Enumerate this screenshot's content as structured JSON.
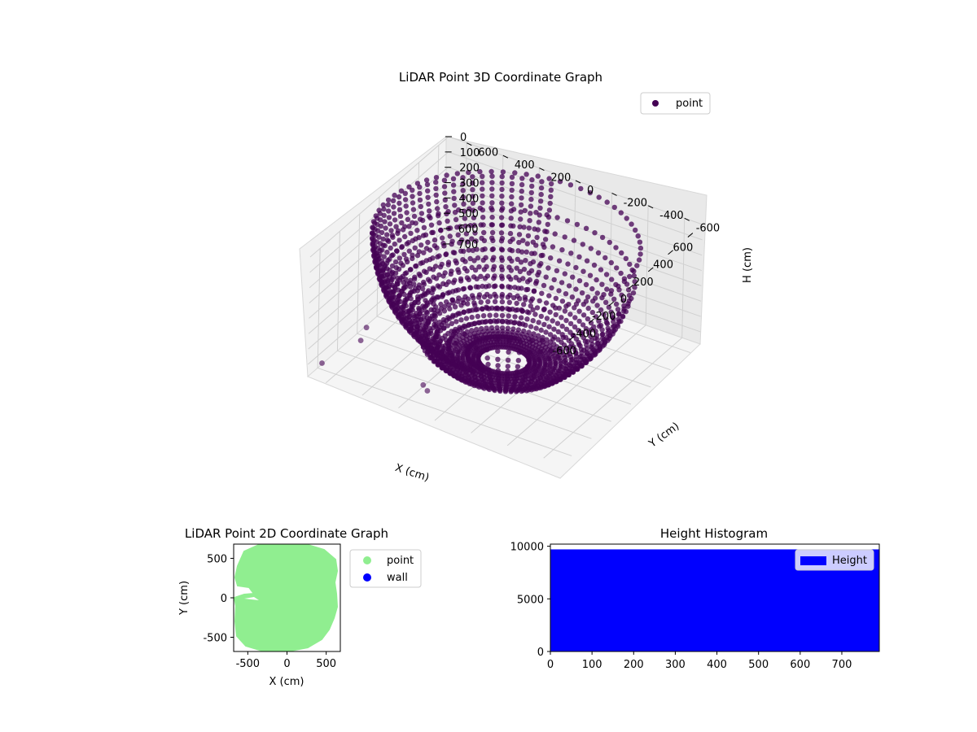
{
  "chart_data": [
    {
      "type": "scatter",
      "projection": "3d",
      "title": "LiDAR Point 3D Coordinate Graph",
      "xlabel": "X (cm)",
      "ylabel": "Y (cm)",
      "zlabel": "H (cm)",
      "xlim": [
        -700,
        700
      ],
      "ylim": [
        -700,
        700
      ],
      "zlim": [
        0,
        780
      ],
      "z_inverted": true,
      "x_ticks": [
        "-600",
        "-400",
        "-200",
        "0",
        "200",
        "400",
        "600"
      ],
      "y_ticks": [
        "-600",
        "-400",
        "-200",
        "0",
        "200",
        "400",
        "600"
      ],
      "z_ticks": [
        "0",
        "100",
        "200",
        "300",
        "400",
        "500",
        "600",
        "700"
      ],
      "legend": {
        "position": "upper-right",
        "entries": [
          "point"
        ]
      },
      "grid": true,
      "series": [
        {
          "name": "point",
          "color": "#440154",
          "shape": "hemispherical-shell",
          "radius": 650,
          "max_depth": 780
        }
      ],
      "outliers": [
        [
          -650,
          650,
          700
        ],
        [
          -350,
          600,
          700
        ],
        [
          -200,
          650,
          720
        ],
        [
          -500,
          150,
          760
        ],
        [
          -450,
          200,
          770
        ],
        [
          -250,
          -50,
          780
        ]
      ]
    },
    {
      "type": "scatter",
      "title": "LiDAR Point 2D Coordinate Graph",
      "xlabel": "X (cm)",
      "ylabel": "Y (cm)",
      "xlim": [
        -680,
        680
      ],
      "ylim": [
        -680,
        680
      ],
      "x_ticks": [
        "-500",
        "0",
        "500"
      ],
      "y_ticks": [
        "-500",
        "0",
        "500"
      ],
      "legend": {
        "position": "outside-right",
        "entries": [
          "point",
          "wall"
        ]
      },
      "series": [
        {
          "name": "point",
          "color": "#90ee90"
        },
        {
          "name": "wall",
          "color": "#0000ff"
        }
      ]
    },
    {
      "type": "bar",
      "title": "Height Histogram",
      "xlim": [
        0,
        790
      ],
      "ylim": [
        0,
        10200
      ],
      "x_ticks": [
        "0",
        "100",
        "200",
        "300",
        "400",
        "500",
        "600",
        "700"
      ],
      "y_ticks": [
        "0",
        "5000",
        "10000"
      ],
      "legend": {
        "position": "upper-right",
        "entries": [
          "Height"
        ]
      },
      "series": [
        {
          "name": "Height",
          "color": "#0000ff",
          "bin_range": [
            0,
            790
          ],
          "value": 9700
        }
      ]
    }
  ]
}
